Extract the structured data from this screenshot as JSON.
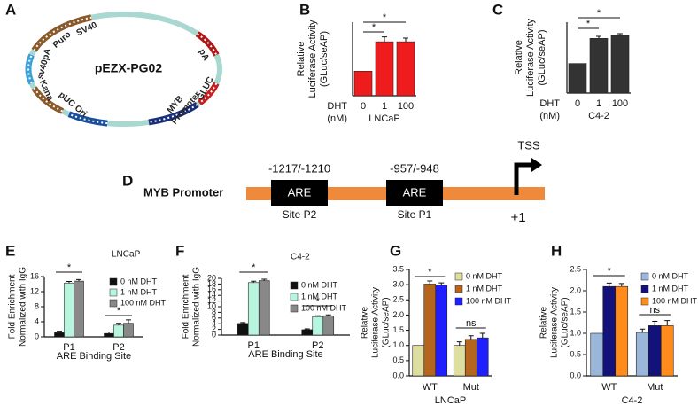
{
  "panel_labels": [
    "A",
    "B",
    "C",
    "D",
    "E",
    "F",
    "G",
    "H"
  ],
  "plasmid": {
    "name": "pEZX-PG02",
    "features": [
      "SV40",
      "Puro",
      "sv40pA",
      "Kana",
      "pUC Ori",
      "MYB",
      "Promoter",
      "GLUC",
      "pA"
    ]
  },
  "promoter": {
    "label": "MYB Promoter",
    "elements": [
      {
        "name": "ARE",
        "position": "-1217/-1210",
        "site": "Site P2"
      },
      {
        "name": "ARE",
        "position": "-957/-948",
        "site": "Site P1"
      }
    ],
    "tss": "TSS",
    "start": "+1"
  },
  "chart_data": [
    {
      "type": "bar",
      "ylabel": [
        "Relative",
        "Luciferase Activity",
        "(GLuc/seAP)"
      ],
      "x_prefix": [
        "DHT",
        "(nM)"
      ],
      "categories": [
        "0",
        "1",
        "100"
      ],
      "values": [
        1,
        2.2,
        2.2
      ],
      "errors": [
        0,
        0.2,
        0.15
      ],
      "color": "#ee1c1c",
      "xlabel": "LNCaP",
      "ylim": [
        0,
        3
      ],
      "annotations": [
        "*",
        "*"
      ]
    },
    {
      "type": "bar",
      "ylabel": [
        "Relative",
        "Luciferase Activity",
        "(GLuc/seAP)"
      ],
      "x_prefix": [
        "DHT",
        "(nM)"
      ],
      "categories": [
        "0",
        "1",
        "100"
      ],
      "values": [
        1,
        1.85,
        1.95
      ],
      "errors": [
        0,
        0.07,
        0.06
      ],
      "color": "#333333",
      "xlabel": "C4-2",
      "ylim": [
        0,
        2.4
      ],
      "annotations": [
        "*",
        "*"
      ]
    },
    {
      "type": "bar",
      "ylabel": [
        "Fold Enrichment",
        "Normalized with IgG"
      ],
      "categories": [
        "P1",
        "P2"
      ],
      "xlabel": "ARE Binding Site",
      "legend_title": "LNCaP",
      "series": [
        {
          "name": "0 nM DHT",
          "color": "#111111",
          "values": [
            1.1,
            0.9
          ],
          "errors": [
            0.4,
            0.4
          ]
        },
        {
          "name": "1 nM DHT",
          "color": "#b8f5df",
          "values": [
            14.3,
            3.1
          ],
          "errors": [
            0.4,
            0.5
          ]
        },
        {
          "name": "100 nM DHT",
          "color": "#888888",
          "values": [
            14.8,
            3.6
          ],
          "errors": [
            0.4,
            0.9
          ]
        }
      ],
      "ylim": [
        0,
        16
      ],
      "yticks": [
        0,
        4,
        8,
        12,
        16
      ],
      "annotations": [
        "*",
        "*"
      ]
    },
    {
      "type": "bar",
      "ylabel": [
        "Fold Enrichment",
        "Normalized with IgG"
      ],
      "categories": [
        "P1",
        "P2"
      ],
      "xlabel": "ARE Binding Site",
      "legend_title": "C4-2",
      "series": [
        {
          "name": "0 nM DHT",
          "color": "#111111",
          "values": [
            4.1,
            1.9
          ],
          "errors": [
            0.3,
            0.3
          ]
        },
        {
          "name": "1 nM DHT",
          "color": "#b8f5df",
          "values": [
            18.5,
            6.5
          ],
          "errors": [
            0.5,
            0.3
          ]
        },
        {
          "name": "100 nM DHT",
          "color": "#888888",
          "values": [
            19.2,
            6.8
          ],
          "errors": [
            0.5,
            0.3
          ]
        }
      ],
      "ylim": [
        0,
        20
      ],
      "yticks": [
        0,
        2,
        4,
        6,
        8,
        10,
        12,
        14,
        16,
        18,
        20
      ],
      "annotations": [
        "*",
        "*"
      ]
    },
    {
      "type": "bar",
      "ylabel": [
        "Relative",
        "Luciferase Activity",
        "(GLuc/seAP)"
      ],
      "categories": [
        "WT",
        "Mut"
      ],
      "xlabel": "LNCaP",
      "series": [
        {
          "name": "0 nM DHT",
          "color": "#dedea0",
          "values": [
            1.0,
            1.0
          ],
          "errors": [
            0,
            0.12
          ]
        },
        {
          "name": "1 nM DHT",
          "color": "#b5651d",
          "values": [
            3.02,
            1.2
          ],
          "errors": [
            0.1,
            0.12
          ]
        },
        {
          "name": "100 nM DHT",
          "color": "#1f1fff",
          "values": [
            2.98,
            1.25
          ],
          "errors": [
            0.08,
            0.15
          ]
        }
      ],
      "ylim": [
        0,
        3.5
      ],
      "yticks": [
        {
          "value": 0,
          "label": "0.0"
        },
        0.5,
        {
          "value": 1,
          "label": "1.0"
        },
        1.5,
        {
          "value": 2,
          "label": "2.0"
        },
        2.5,
        {
          "value": 3,
          "label": "3.0"
        },
        3.5
      ],
      "annotations": [
        "*",
        "ns"
      ]
    },
    {
      "type": "bar",
      "ylabel": [
        "Relative",
        "Luciferase Activity",
        "(GLuc/seAP)"
      ],
      "categories": [
        "WT",
        "Mut"
      ],
      "xlabel": "C4-2",
      "series": [
        {
          "name": "0 nM DHT",
          "color": "#9ab6d9",
          "values": [
            1.0,
            1.02
          ],
          "errors": [
            0,
            0.08
          ]
        },
        {
          "name": "1 nM DHT",
          "color": "#12127a",
          "values": [
            2.1,
            1.18
          ],
          "errors": [
            0.08,
            0.1
          ]
        },
        {
          "name": "100 nM DHT",
          "color": "#ff8c1a",
          "values": [
            2.1,
            1.18
          ],
          "errors": [
            0.07,
            0.12
          ]
        }
      ],
      "ylim": [
        0,
        2.5
      ],
      "yticks": [
        {
          "value": 0,
          "label": "0.0"
        },
        0.5,
        {
          "value": 1,
          "label": "1.0"
        },
        1.5,
        {
          "value": 2,
          "label": "2.0"
        },
        2.5
      ],
      "annotations": [
        "*",
        "ns"
      ]
    }
  ]
}
